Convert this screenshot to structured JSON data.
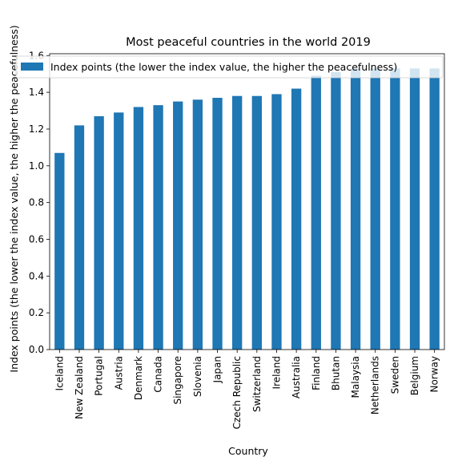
{
  "chart_data": {
    "type": "bar",
    "title": "Most peaceful countries in the world 2019",
    "xlabel": "Country",
    "ylabel": "Index points (the lower the index value, the higher the peacefulness)",
    "categories": [
      "Iceland",
      "New Zealand",
      "Portugal",
      "Austria",
      "Denmark",
      "Canada",
      "Singapore",
      "Slovenia",
      "Japan",
      "Czech Republic",
      "Switzerland",
      "Ireland",
      "Australia",
      "Finland",
      "Bhutan",
      "Malaysia",
      "Netherlands",
      "Sweden",
      "Belgium",
      "Norway"
    ],
    "series": [
      {
        "name": "Index points (the lower the index value, the higher the peacefulness)",
        "color": "#1f77b4",
        "values": [
          1.07,
          1.22,
          1.27,
          1.29,
          1.32,
          1.33,
          1.35,
          1.36,
          1.37,
          1.38,
          1.38,
          1.39,
          1.42,
          1.49,
          1.51,
          1.53,
          1.53,
          1.53,
          1.53,
          1.53
        ]
      }
    ],
    "yticks": [
      "0.0",
      "0.2",
      "0.4",
      "0.6",
      "0.8",
      "1.0",
      "1.2",
      "1.4",
      "1.6"
    ],
    "ylim": [
      0,
      1.61
    ],
    "grid": false,
    "legend": "top-left"
  }
}
